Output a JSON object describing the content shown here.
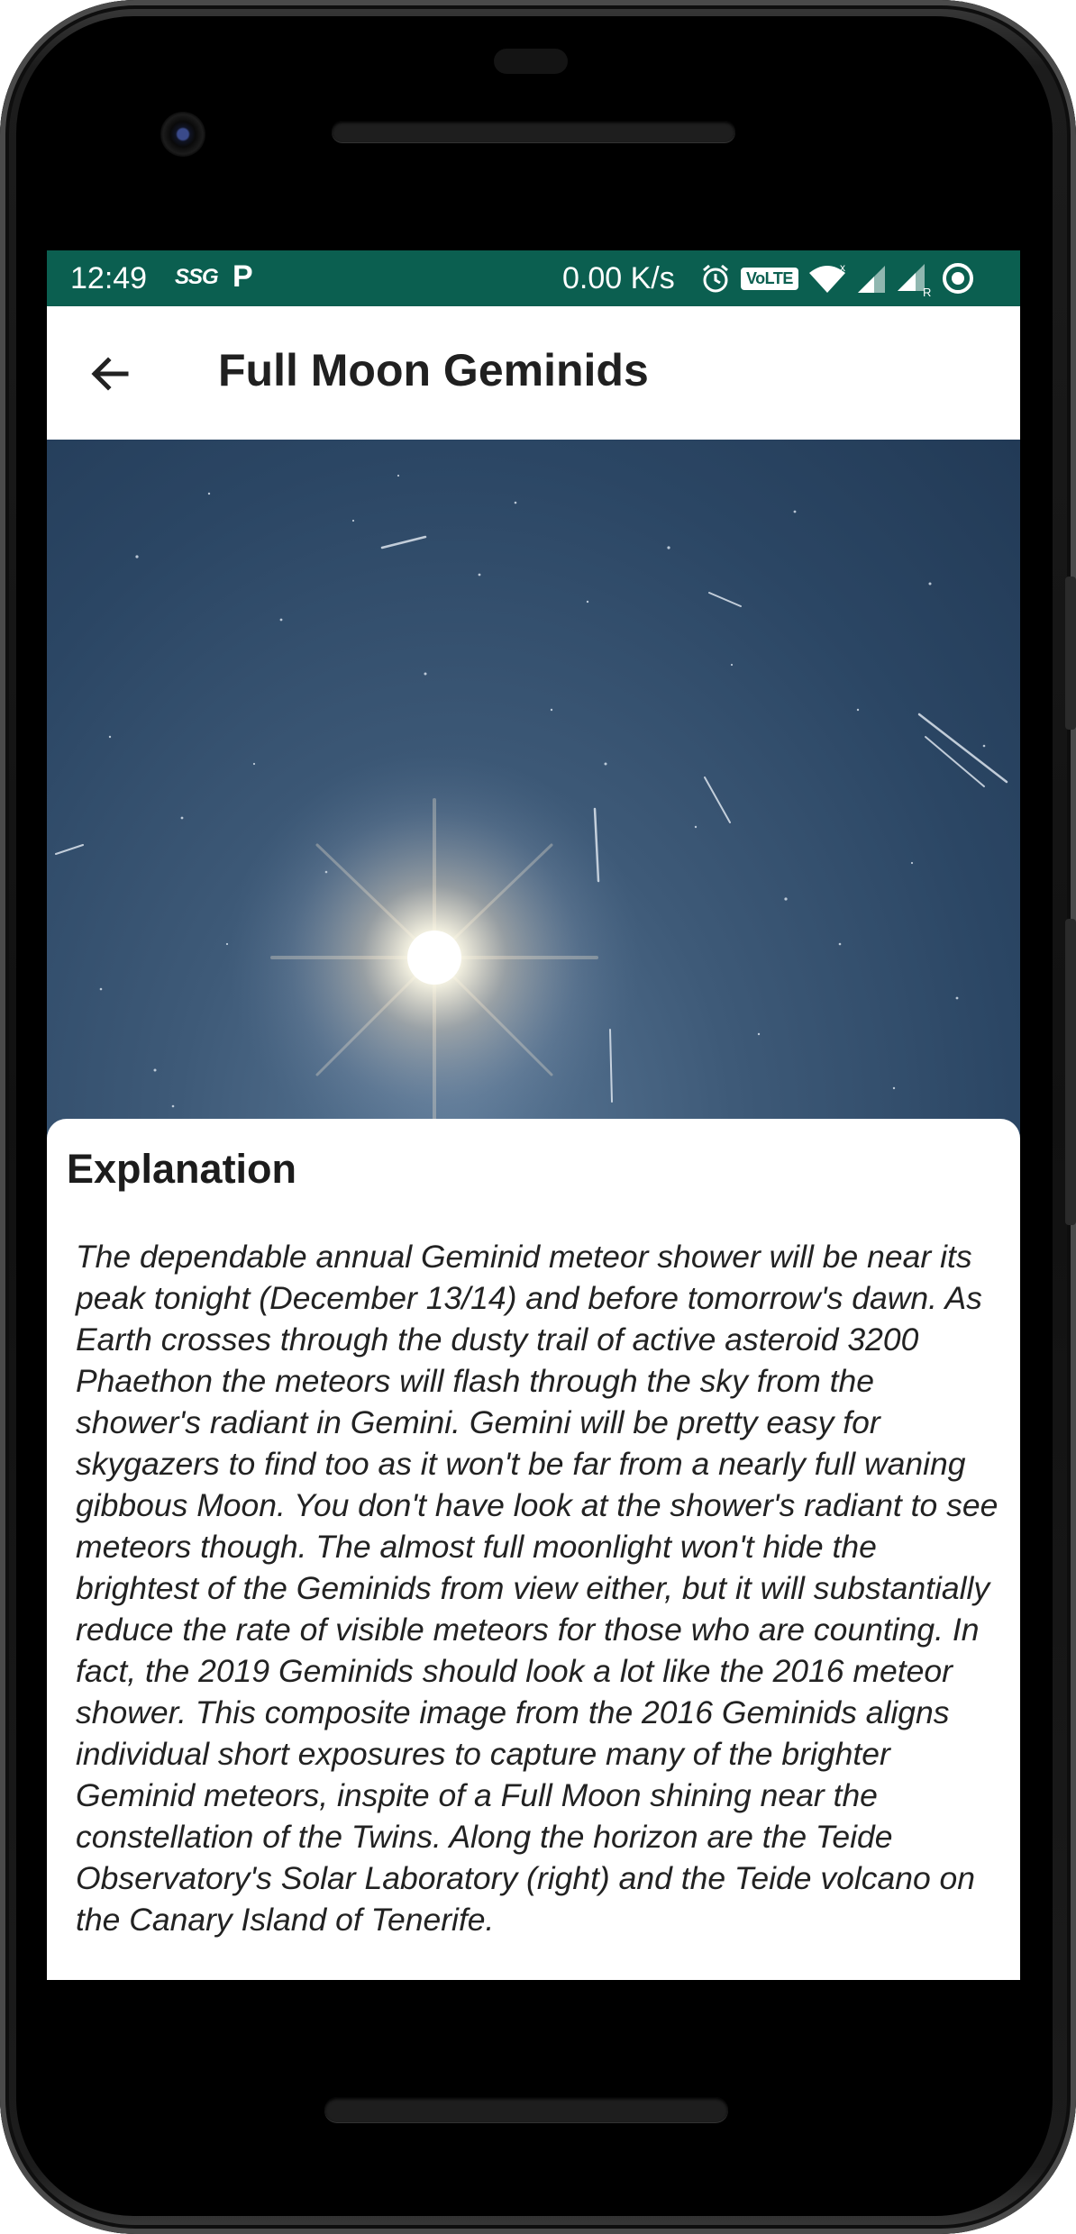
{
  "status_bar": {
    "time": "12:49",
    "carrier_icon": "SSG",
    "parking_icon": "P",
    "speed": "0.00 K/s",
    "volte": "VoLTE",
    "icons": [
      "alarm-icon",
      "volte-icon",
      "wifi-icon",
      "signal-icon",
      "signal-roaming-icon",
      "record-icon"
    ],
    "background_color": "#0b5f50"
  },
  "app_bar": {
    "title": "Full Moon Geminids",
    "back_icon": "arrow-left-icon"
  },
  "photo": {
    "subject": "night sky with bright moon and meteor streaks"
  },
  "explanation": {
    "heading": "Explanation",
    "body": "The dependable annual Geminid meteor shower will be near its peak tonight (December 13/14) and before tomorrow's dawn. As Earth crosses through the dusty trail of active asteroid 3200 Phaethon the meteors will flash through the sky from the shower's radiant in Gemini. Gemini will be pretty easy for skygazers to find too as it won't be far from a nearly full waning gibbous Moon. You don't have look at the shower's radiant to see meteors though. The almost full moonlight won't hide the brightest of the Geminids from view either, but it will substantially reduce the rate of visible meteors for those who are counting. In fact, the 2019 Geminids should look a lot like the 2016 meteor shower. This composite image from the 2016 Geminids aligns individual short exposures to capture many of the brighter Geminid meteors, inspite of a Full Moon shining near the constellation of the Twins. Along the horizon are the Teide Observatory's Solar Laboratory (right) and the Teide volcano on the Canary Island of Tenerife."
  }
}
